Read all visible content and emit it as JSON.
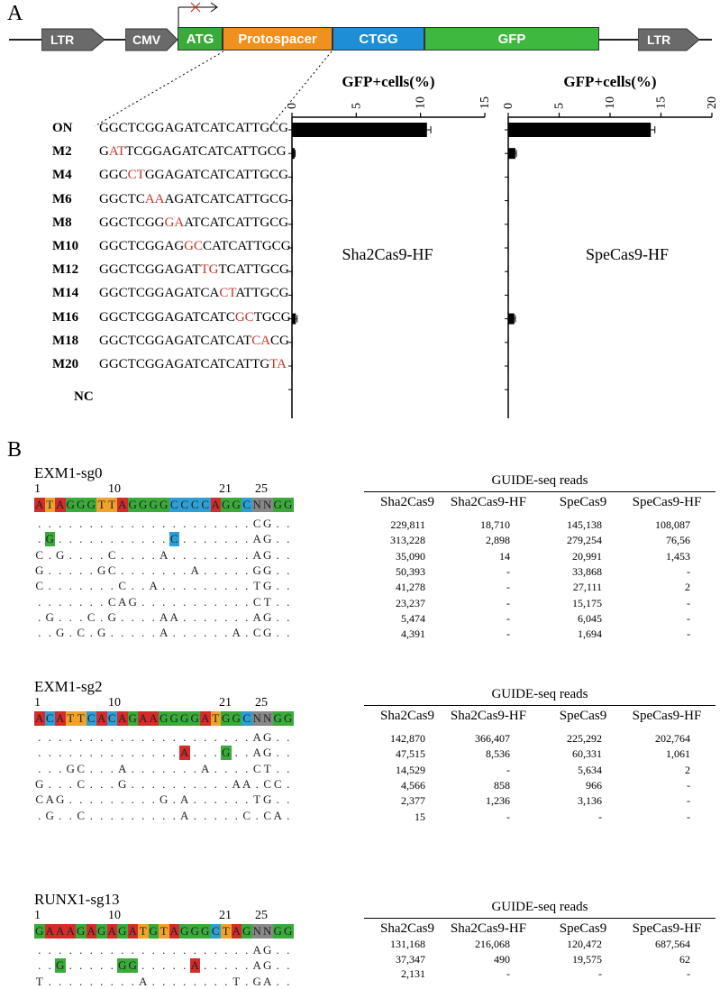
{
  "panelA": {
    "letter": "A",
    "construct": {
      "ltr_left": "LTR",
      "cmv": "CMV",
      "atg": "ATG",
      "protospacer": "Protospacer",
      "ctgg": "CTGG",
      "gfp": "GFP",
      "ltr_right": "LTR",
      "colors": {
        "atg": "#3aaa3a",
        "protospacer": "#f0901e",
        "ctgg": "#1e8fd6",
        "gfp": "#3fb83f",
        "arrow": "#6a6a6a"
      }
    },
    "rows": [
      {
        "label": "ON",
        "pre": "GGCTCGGAGATCATCATTGCG",
        "mm": "",
        "post": ""
      },
      {
        "label": "M2",
        "pre": "G",
        "mm": "AT",
        "post": "TCGGAGATCATCATTGCG"
      },
      {
        "label": "M4",
        "pre": "GGC",
        "mm": "CT",
        "post": "GGAGATCATCATTGCG"
      },
      {
        "label": "M6",
        "pre": "GGCTC",
        "mm": "AA",
        "post": "AGATCATCATTGCG"
      },
      {
        "label": "M8",
        "pre": "GGCTCGG",
        "mm": "GA",
        "post": "ATCATCATTGCG"
      },
      {
        "label": "M10",
        "pre": "GGCTCGGAG",
        "mm": "GC",
        "post": "CATCATTGCG"
      },
      {
        "label": "M12",
        "pre": "GGCTCGGAGAT",
        "mm": "TG",
        "post": "TCATTGCG"
      },
      {
        "label": "M14",
        "pre": "GGCTCGGAGATCA",
        "mm": "CT",
        "post": "ATTGCG"
      },
      {
        "label": "M16",
        "pre": "GGCTCGGAGATCATC",
        "mm": "GC",
        "post": "TGCG"
      },
      {
        "label": "M18",
        "pre": "GGCTCGGAGATCATCAT",
        "mm": "CA",
        "post": "CG"
      },
      {
        "label": "M20",
        "pre": "GGCTCGGAGATCATCATTG",
        "mm": "TA",
        "post": ""
      },
      {
        "label": "NC",
        "pre": "",
        "mm": "",
        "post": ""
      }
    ]
  },
  "chart_data": [
    {
      "type": "bar",
      "title": "GFP+cells(%)",
      "name": "Sha2Cas9-HF",
      "xlim": [
        0,
        15
      ],
      "ticks": [
        "0",
        "5",
        "10",
        "15"
      ],
      "categories": [
        "ON",
        "M2",
        "M4",
        "M6",
        "M8",
        "M10",
        "M12",
        "M14",
        "M16",
        "M18",
        "M20",
        "NC"
      ],
      "values": [
        10.5,
        0.2,
        0.05,
        0.05,
        0.05,
        0.05,
        0.05,
        0.05,
        0.3,
        0.05,
        0.05,
        0.02
      ],
      "errors": [
        0.3,
        0.05,
        0,
        0,
        0,
        0,
        0,
        0,
        0.1,
        0,
        0,
        0
      ]
    },
    {
      "type": "bar",
      "title": "GFP+cells(%)",
      "name": "SpeCas9-HF",
      "xlim": [
        0,
        20
      ],
      "ticks": [
        "0",
        "5",
        "10",
        "15",
        "20"
      ],
      "categories": [
        "ON",
        "M2",
        "M4",
        "M6",
        "M8",
        "M10",
        "M12",
        "M14",
        "M16",
        "M18",
        "M20",
        "NC"
      ],
      "values": [
        14.0,
        0.7,
        0.05,
        0.05,
        0.05,
        0.05,
        0.05,
        0.05,
        0.6,
        0.05,
        0.05,
        0.02
      ],
      "errors": [
        0.4,
        0.1,
        0,
        0,
        0,
        0,
        0,
        0,
        0.1,
        0,
        0,
        0
      ]
    }
  ],
  "panelB": {
    "letter": "B",
    "tableTitle": "GUIDE-seq reads",
    "columns": [
      "Sha2Cas9",
      "Sha2Cas9-HF",
      "SpeCas9",
      "SpeCas9-HF"
    ],
    "index_labels": [
      "1",
      "10",
      "21",
      "25"
    ],
    "guides": [
      {
        "name": "EXM1-sg0",
        "seq": "ATAGGGTTAGGGGCCCCAGGCNNGG",
        "dots": [
          ". . . . . . . . . . . . . . . . . . . . . C G . .",
          ". G . . . . . . . . . . . C . . . . . . . A G . .",
          "C . G . . . . C . . . . A . . . . . . . . A G . .",
          "G . . . . . G C . . . . . . . A . . . . . G G . .",
          "C . . . . . . . C . . A . . . . . . . . . T G . .",
          ". . . . . . . C A G . . . . . . . . . . . C T . .",
          ". G . . . C . G . . . . A A . . . . . . . A G . .",
          ". . G . C . G . . . . . A . . . . . . A . C G . ."
        ],
        "rows": [
          [
            "229,811",
            "18,710",
            "145,138",
            "108,087"
          ],
          [
            "313,228",
            "2,898",
            "279,254",
            "76,56"
          ],
          [
            "35,090",
            "14",
            "20,991",
            "1,453"
          ],
          [
            "50,393",
            "-",
            "33,868",
            "-"
          ],
          [
            "41,278",
            "-",
            "27,111",
            "2"
          ],
          [
            "23,237",
            "-",
            "15,175",
            "-"
          ],
          [
            "5,474",
            "-",
            "6,045",
            "-"
          ],
          [
            "4,391",
            "-",
            "1,694",
            "-"
          ]
        ]
      },
      {
        "name": "EXM1-sg2",
        "seq": "ACATTCACAGAAGGGGATGGCNNGG",
        "dots": [
          ". . . . . . . . . . . . . . . . . . . . . A G . .",
          ". . . . . . . . . . . . . . A . . . G . . A G . .",
          ". . . G C . . . A . . . . . . . A . . . . C T . .",
          "G . . . C . . . G . . . . . . . . . . A A . C C .",
          "C A G . . . . . . . . . G . A . . . . . . T G . .",
          ". G . . C . . . . . . . . . A . . . . . C . C A ."
        ],
        "rows": [
          [
            "142,870",
            "366,407",
            "225,292",
            "202,764"
          ],
          [
            "47,515",
            "8,536",
            "60,331",
            "1,061"
          ],
          [
            "14,529",
            "-",
            "5,634",
            "2"
          ],
          [
            "4,566",
            "858",
            "966",
            "-"
          ],
          [
            "2,377",
            "1,236",
            "3,136",
            "-"
          ],
          [
            "15",
            "-",
            "-",
            "-"
          ]
        ]
      },
      {
        "name": "RUNX1-sg13",
        "seq": "GAAAGAGAGATGTAGGGCTAGNNGG",
        "dots": [
          ". . . . . . . . . . . . . . . . . . . . . A G . .",
          ". . G . . . . . G G . . . . . A . . . . . A G . .",
          "T . . . . . . . . . A . . . . . . . . T . G A . ."
        ],
        "rows": [
          [
            "131,168",
            "216,068",
            "120,472",
            "687,564"
          ],
          [
            "37,347",
            "490",
            "19,575",
            "62"
          ],
          [
            "2,131",
            "-",
            "-",
            "-"
          ]
        ]
      }
    ]
  }
}
